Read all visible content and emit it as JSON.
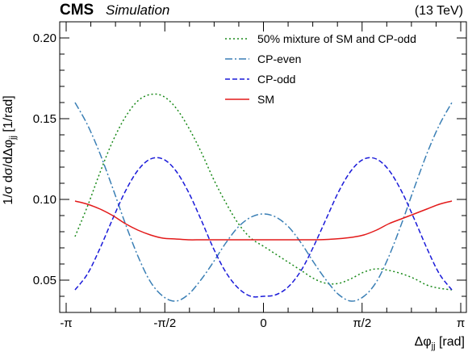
{
  "header": {
    "experiment": "CMS",
    "status": "Simulation",
    "energy": "(13 TeV)"
  },
  "chart_data": {
    "type": "line",
    "xlabel_main": "Δφ",
    "xlabel_sub": "jj",
    "xlabel_unit": " [rad]",
    "ylabel_main": "1/σ dσ/dΔφ",
    "ylabel_sub": "jj",
    "ylabel_unit": " [1/rad]",
    "xlim": [
      -3.14159,
      3.14159
    ],
    "ylim": [
      0.03,
      0.21
    ],
    "xticks": [
      {
        "value": -3.14159,
        "label": "-π"
      },
      {
        "value": -1.5708,
        "label": "-π/2"
      },
      {
        "value": 0,
        "label": "0"
      },
      {
        "value": 1.5708,
        "label": "π/2"
      },
      {
        "value": 3.14159,
        "label": "π"
      }
    ],
    "yticks": [
      {
        "value": 0.05,
        "label": "0.05"
      },
      {
        "value": 0.1,
        "label": "0.10"
      },
      {
        "value": 0.15,
        "label": "0.15"
      },
      {
        "value": 0.2,
        "label": "0.20"
      }
    ],
    "legend_position": "top-right",
    "series": [
      {
        "name": "50% mixture of SM and CP-odd",
        "color": "#1a8a1a",
        "dash": "2,3",
        "x": [
          -3.0,
          -2.8,
          -2.6,
          -2.4,
          -2.2,
          -2.0,
          -1.8,
          -1.6,
          -1.4,
          -1.2,
          -1.0,
          -0.8,
          -0.6,
          -0.4,
          -0.2,
          0.0,
          0.2,
          0.4,
          0.6,
          0.8,
          1.0,
          1.2,
          1.4,
          1.6,
          1.8,
          2.0,
          2.2,
          2.4,
          2.6,
          2.8,
          3.0
        ],
        "y": [
          0.077,
          0.096,
          0.117,
          0.136,
          0.151,
          0.161,
          0.165,
          0.164,
          0.157,
          0.145,
          0.13,
          0.113,
          0.098,
          0.085,
          0.076,
          0.071,
          0.066,
          0.061,
          0.056,
          0.051,
          0.048,
          0.048,
          0.051,
          0.055,
          0.057,
          0.056,
          0.054,
          0.051,
          0.047,
          0.045,
          0.044
        ]
      },
      {
        "name": "CP-even",
        "color": "#3a7fb5",
        "dash": "9,3,2,3",
        "x": [
          -3.0,
          -2.8,
          -2.6,
          -2.4,
          -2.2,
          -2.0,
          -1.8,
          -1.6,
          -1.4,
          -1.2,
          -1.0,
          -0.8,
          -0.6,
          -0.4,
          -0.2,
          0.0,
          0.2,
          0.4,
          0.6,
          0.8,
          1.0,
          1.2,
          1.4,
          1.6,
          1.8,
          2.0,
          2.2,
          2.4,
          2.6,
          2.8,
          3.0
        ],
        "y": [
          0.16,
          0.146,
          0.128,
          0.107,
          0.085,
          0.065,
          0.049,
          0.04,
          0.037,
          0.041,
          0.05,
          0.061,
          0.073,
          0.083,
          0.089,
          0.091,
          0.089,
          0.083,
          0.073,
          0.061,
          0.05,
          0.041,
          0.037,
          0.04,
          0.049,
          0.065,
          0.085,
          0.107,
          0.128,
          0.146,
          0.16
        ]
      },
      {
        "name": "CP-odd",
        "color": "#1a1ad9",
        "dash": "6,3",
        "x": [
          -3.0,
          -2.8,
          -2.6,
          -2.4,
          -2.2,
          -2.0,
          -1.8,
          -1.6,
          -1.4,
          -1.2,
          -1.0,
          -0.8,
          -0.6,
          -0.4,
          -0.2,
          0.0,
          0.2,
          0.4,
          0.6,
          0.8,
          1.0,
          1.2,
          1.4,
          1.6,
          1.8,
          2.0,
          2.2,
          2.4,
          2.6,
          2.8,
          3.0
        ],
        "y": [
          0.044,
          0.054,
          0.07,
          0.088,
          0.105,
          0.118,
          0.125,
          0.125,
          0.118,
          0.105,
          0.088,
          0.07,
          0.055,
          0.045,
          0.04,
          0.04,
          0.041,
          0.046,
          0.056,
          0.071,
          0.088,
          0.105,
          0.118,
          0.125,
          0.125,
          0.118,
          0.105,
          0.088,
          0.07,
          0.054,
          0.044
        ]
      },
      {
        "name": "SM",
        "color": "#e31a1a",
        "dash": "",
        "x": [
          -3.0,
          -2.8,
          -2.6,
          -2.4,
          -2.2,
          -2.0,
          -1.8,
          -1.6,
          -1.4,
          -1.2,
          -1.0,
          -0.8,
          -0.6,
          -0.4,
          -0.2,
          0.0,
          0.2,
          0.4,
          0.6,
          0.8,
          1.0,
          1.2,
          1.4,
          1.6,
          1.8,
          2.0,
          2.2,
          2.4,
          2.6,
          2.8,
          3.0
        ],
        "y": [
          0.099,
          0.097,
          0.094,
          0.09,
          0.085,
          0.081,
          0.078,
          0.076,
          0.0755,
          0.075,
          0.075,
          0.075,
          0.075,
          0.075,
          0.075,
          0.075,
          0.075,
          0.075,
          0.075,
          0.075,
          0.0752,
          0.0757,
          0.0765,
          0.078,
          0.081,
          0.085,
          0.088,
          0.091,
          0.094,
          0.097,
          0.099
        ]
      }
    ]
  }
}
